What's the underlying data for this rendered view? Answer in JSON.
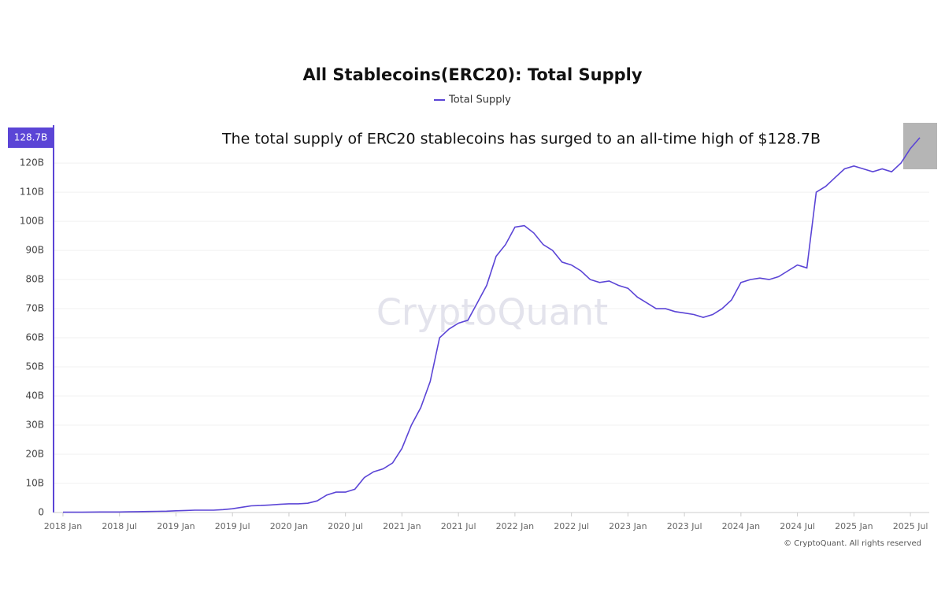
{
  "chart_data": {
    "type": "line",
    "title": "All Stablecoins(ERC20): Total Supply",
    "annotation": "The total supply of ERC20 stablecoins has surged to an all-time high of $128.7B",
    "watermark": "CryptoQuant",
    "credit": "© CryptoQuant. All rights reserved",
    "x": [
      "2018-01",
      "2018-02",
      "2018-03",
      "2018-04",
      "2018-05",
      "2018-06",
      "2018-07",
      "2018-08",
      "2018-09",
      "2018-10",
      "2018-11",
      "2018-12",
      "2019-01",
      "2019-02",
      "2019-03",
      "2019-04",
      "2019-05",
      "2019-06",
      "2019-07",
      "2019-08",
      "2019-09",
      "2019-10",
      "2019-11",
      "2019-12",
      "2020-01",
      "2020-02",
      "2020-03",
      "2020-04",
      "2020-05",
      "2020-06",
      "2020-07",
      "2020-08",
      "2020-09",
      "2020-10",
      "2020-11",
      "2020-12",
      "2021-01",
      "2021-02",
      "2021-03",
      "2021-04",
      "2021-05",
      "2021-06",
      "2021-07",
      "2021-08",
      "2021-09",
      "2021-10",
      "2021-11",
      "2021-12",
      "2022-01",
      "2022-02",
      "2022-03",
      "2022-04",
      "2022-05",
      "2022-06",
      "2022-07",
      "2022-08",
      "2022-09",
      "2022-10",
      "2022-11",
      "2022-12",
      "2023-01",
      "2023-02",
      "2023-03",
      "2023-04",
      "2023-05",
      "2023-06",
      "2023-07",
      "2023-08",
      "2023-09",
      "2023-10",
      "2023-11",
      "2023-12",
      "2024-01",
      "2024-02",
      "2024-03",
      "2024-04",
      "2024-05",
      "2024-06",
      "2024-07",
      "2024-08",
      "2024-09",
      "2024-10",
      "2024-11",
      "2024-12",
      "2025-01",
      "2025-02",
      "2025-03",
      "2025-04",
      "2025-05",
      "2025-06",
      "2025-07",
      "2025-08"
    ],
    "series": [
      {
        "name": "Total Supply",
        "color": "#5b45d6",
        "values": [
          0.1,
          0.1,
          0.1,
          0.15,
          0.2,
          0.2,
          0.2,
          0.25,
          0.3,
          0.35,
          0.4,
          0.45,
          0.6,
          0.7,
          0.8,
          0.8,
          0.8,
          1.0,
          1.3,
          1.8,
          2.3,
          2.4,
          2.6,
          2.8,
          3.0,
          3.0,
          3.2,
          4.0,
          6.0,
          7.0,
          7.0,
          8.0,
          12,
          14,
          15,
          17,
          22,
          30,
          36,
          45,
          60,
          63,
          65,
          66,
          72,
          78,
          88,
          92,
          98,
          98.5,
          96,
          92,
          90,
          86,
          85,
          83,
          80,
          79,
          79.5,
          78,
          77,
          74,
          72,
          70,
          70,
          69,
          68.5,
          68,
          67,
          68,
          70,
          73,
          79,
          80,
          80.5,
          80,
          81,
          83,
          85,
          84,
          110,
          112,
          115,
          118,
          119,
          118,
          117,
          118,
          117,
          120,
          125,
          128.7
        ]
      }
    ],
    "highlight": {
      "value": 128.7,
      "label": "128.7B"
    },
    "xlim": [
      "2017-12",
      "2025-09"
    ],
    "xticks": [
      {
        "value": "2018-01",
        "label": "2018 Jan"
      },
      {
        "value": "2018-07",
        "label": "2018 Jul"
      },
      {
        "value": "2019-01",
        "label": "2019 Jan"
      },
      {
        "value": "2019-07",
        "label": "2019 Jul"
      },
      {
        "value": "2020-01",
        "label": "2020 Jan"
      },
      {
        "value": "2020-07",
        "label": "2020 Jul"
      },
      {
        "value": "2021-01",
        "label": "2021 Jan"
      },
      {
        "value": "2021-07",
        "label": "2021 Jul"
      },
      {
        "value": "2022-01",
        "label": "2022 Jan"
      },
      {
        "value": "2022-07",
        "label": "2022 Jul"
      },
      {
        "value": "2023-01",
        "label": "2023 Jan"
      },
      {
        "value": "2023-07",
        "label": "2023 Jul"
      },
      {
        "value": "2024-01",
        "label": "2024 Jan"
      },
      {
        "value": "2024-07",
        "label": "2024 Jul"
      },
      {
        "value": "2025-01",
        "label": "2025 Jan"
      },
      {
        "value": "2025-07",
        "label": "2025 Jul"
      }
    ],
    "ylim": [
      0,
      133
    ],
    "yticks": [
      0,
      {
        "value": 10,
        "label": "10B"
      },
      {
        "value": 20,
        "label": "20B"
      },
      {
        "value": 30,
        "label": "30B"
      },
      {
        "value": 40,
        "label": "40B"
      },
      {
        "value": 50,
        "label": "50B"
      },
      {
        "value": 60,
        "label": "60B"
      },
      {
        "value": 70,
        "label": "70B"
      },
      {
        "value": 80,
        "label": "80B"
      },
      {
        "value": 90,
        "label": "90B"
      },
      {
        "value": 100,
        "label": "100B"
      },
      {
        "value": 110,
        "label": "110B"
      },
      {
        "value": 120,
        "label": "120B"
      }
    ],
    "grid": true
  }
}
